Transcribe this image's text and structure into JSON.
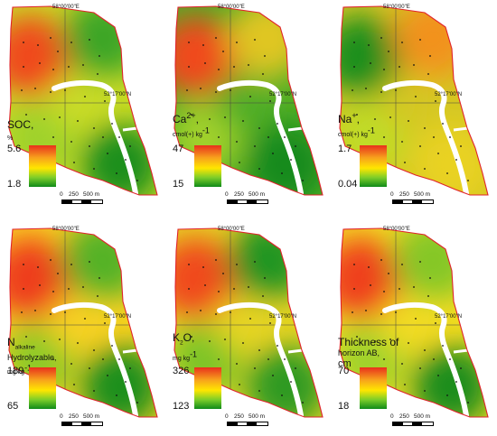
{
  "coordinates": {
    "longitude": "58°00'00\"E",
    "latitude": "52°17'00\"N"
  },
  "scalebar": {
    "zero": "0",
    "mid": "250",
    "end": "500 m"
  },
  "panels": [
    {
      "id": "soc",
      "title": "SOC,",
      "unit": "%",
      "max": "5.6",
      "min": "1.8",
      "colors": {
        "nw": "#f04a1e",
        "ne": "#3ea626",
        "sw": "#9fd22a",
        "se": "#1f8f1e",
        "c": "#c9dc25"
      }
    },
    {
      "id": "ca",
      "title": "Ca",
      "sup": "2+",
      "sep": ",",
      "unit": "cmol(+) kg",
      "unit_sup": "-1",
      "max": "47",
      "min": "15",
      "colors": {
        "nw": "#f04a1e",
        "ne": "#e0c623",
        "sw": "#a2d12a",
        "se": "#178a1b",
        "c": "#4fae26"
      }
    },
    {
      "id": "na",
      "title": "Na",
      "sup": "+",
      "sep": ",",
      "unit": "cmol(+) kg",
      "unit_sup": "-1",
      "max": "1.7",
      "min": "0.04",
      "colors": {
        "nw": "#1e8f1f",
        "ne": "#f2921d",
        "sw": "#bfdc26",
        "se": "#e9d223",
        "c": "#d4c723"
      }
    },
    {
      "id": "n",
      "title": "N",
      "title_sub": "alkaline",
      "line2": "Hydrolyzable,",
      "unit": "mg kg",
      "unit_sup": "-1",
      "max": "189",
      "min": "65",
      "colors": {
        "nw": "#ee3d1d",
        "ne": "#55b227",
        "sw": "#8cc928",
        "se": "#1f8f1e",
        "c": "#f8d221"
      }
    },
    {
      "id": "k",
      "title": "K",
      "title_sub": "2",
      "title_after": "O,",
      "unit": "mg kg",
      "unit_sup": "-1",
      "max": "326",
      "min": "123",
      "colors": {
        "nw": "#f04a1e",
        "ne": "#239520",
        "sw": "#7cc427",
        "se": "#2e9a21",
        "c": "#e7d523"
      }
    },
    {
      "id": "ab",
      "title": "Thickness of",
      "line2": "horizon AB,",
      "unit": "cm",
      "max": "70",
      "min": "18",
      "colors": {
        "nw": "#ef3f1d",
        "ne": "#85c728",
        "sw": "#9fd22a",
        "se": "#1c8d1e",
        "c": "#f3dc22"
      }
    }
  ]
}
